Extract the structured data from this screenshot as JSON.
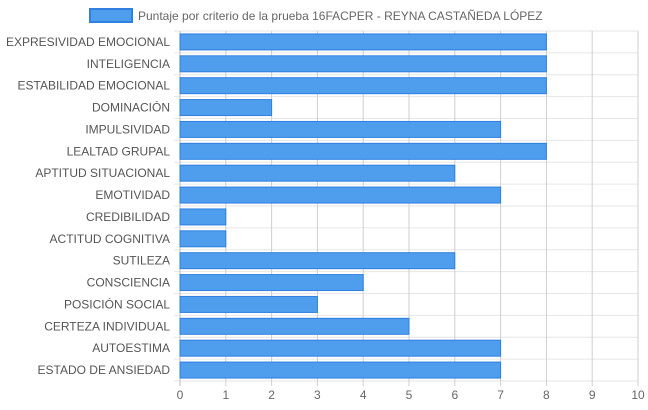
{
  "chart_data": {
    "type": "bar",
    "orientation": "horizontal",
    "categories": [
      "EXPRESIVIDAD EMOCIONAL",
      "INTELIGENCIA",
      "ESTABILIDAD EMOCIONAL",
      "DOMINACIÓN",
      "IMPULSIVIDAD",
      "LEALTAD GRUPAL",
      "APTITUD SITUACIONAL",
      "EMOTIVIDAD",
      "CREDIBILIDAD",
      "ACTITUD COGNITIVA",
      "SUTILEZA",
      "CONSCIENCIA",
      "POSICIÓN SOCIAL",
      "CERTEZA INDIVIDUAL",
      "AUTOESTIMA",
      "ESTADO DE ANSIEDAD"
    ],
    "series": [
      {
        "name": "Puntaje por criterio de la prueba 16FACPER - REYNA CASTAÑEDA LÓPEZ",
        "values": [
          8,
          8,
          8,
          2,
          7,
          8,
          6,
          7,
          1,
          1,
          6,
          4,
          3,
          5,
          7,
          7
        ],
        "color": "#4f9ded",
        "border_color": "#2f80e0"
      }
    ],
    "xlim": [
      0,
      10
    ],
    "xticks": [
      0,
      1,
      2,
      3,
      4,
      5,
      6,
      7,
      8,
      9,
      10
    ],
    "grid": true,
    "legend_position": "top"
  }
}
